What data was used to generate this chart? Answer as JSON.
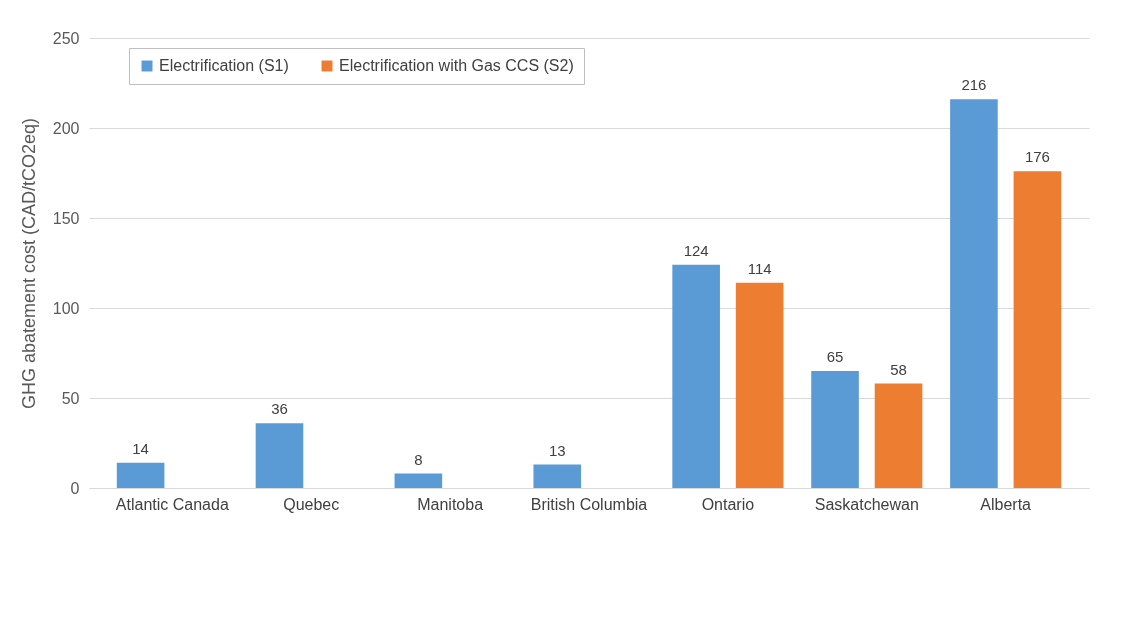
{
  "chart_data": {
    "type": "bar",
    "ylabel": "GHG abatement cost (CAD/tCO2eq)",
    "categories": [
      "Atlantic Canada",
      "Quebec",
      "Manitoba",
      "British Columbia",
      "Ontario",
      "Saskatchewan",
      "Alberta"
    ],
    "series": [
      {
        "name": "Electrification (S1)",
        "color": "#5b9bd5",
        "values": [
          14,
          36,
          8,
          13,
          124,
          65,
          216
        ]
      },
      {
        "name": "Electrification with Gas CCS (S2)",
        "color": "#ed7d31",
        "values": [
          null,
          null,
          null,
          null,
          114,
          58,
          176
        ]
      }
    ],
    "ylim": [
      0,
      250
    ],
    "yticks": [
      0,
      50,
      100,
      150,
      200,
      250
    ],
    "grid": "y",
    "legend": "top left",
    "data_labels": true
  }
}
